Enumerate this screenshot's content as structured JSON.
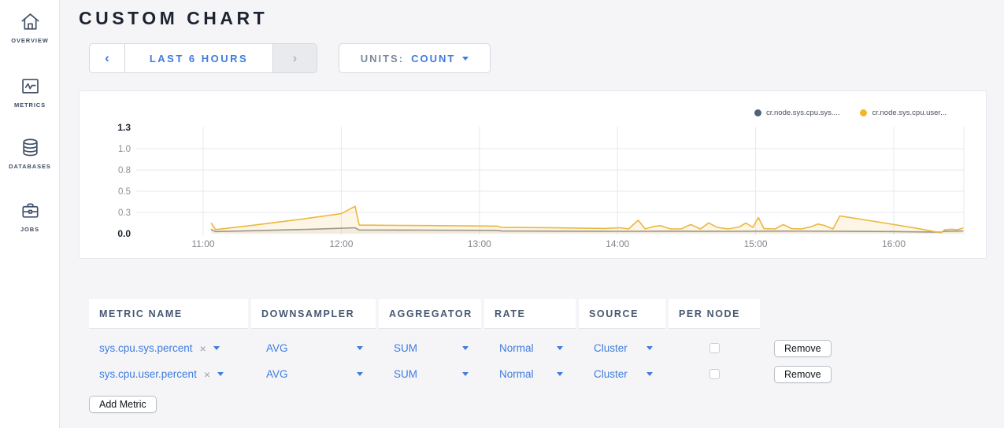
{
  "sidebar": {
    "items": [
      {
        "label": "OVERVIEW",
        "icon": "home-icon"
      },
      {
        "label": "METRICS",
        "icon": "metrics-icon"
      },
      {
        "label": "DATABASES",
        "icon": "database-icon"
      },
      {
        "label": "JOBS",
        "icon": "jobs-icon"
      }
    ]
  },
  "header": {
    "title": "CUSTOM CHART"
  },
  "toolbar": {
    "prev": "‹",
    "timewindow": "LAST 6 HOURS",
    "next": "›",
    "units_label": "UNITS:",
    "units_value": "COUNT"
  },
  "chart": {
    "legend": [
      {
        "label": "cr.node.sys.cpu.sys....",
        "color": "#50617c"
      },
      {
        "label": "cr.node.sys.cpu.user...",
        "color": "#f2b726"
      }
    ]
  },
  "chart_data": {
    "type": "line",
    "title": "",
    "xlabel": "",
    "ylabel": "",
    "ylim": [
      0,
      1.3
    ],
    "xlim_hours": [
      10.56,
      16.51
    ],
    "grid": true,
    "legend_position": "top-right",
    "x_ticks": {
      "hours": [
        11,
        12,
        13,
        14,
        15,
        16
      ],
      "labels": [
        "11:00",
        "12:00",
        "13:00",
        "14:00",
        "15:00",
        "16:00"
      ]
    },
    "y_ticks": {
      "values": [
        0,
        0.26,
        0.52,
        0.78,
        1.04,
        1.3
      ],
      "labels": [
        "0.0",
        "0.3",
        "0.5",
        "0.8",
        "1.0",
        "1.3"
      ]
    },
    "series": [
      {
        "name": "cr.node.sys.cpu.sys....",
        "line_color": "#8f9298",
        "fill_color": "rgba(143,146,152,0.10)",
        "dot_color": "#50617c",
        "points": [
          [
            11.06,
            0.048
          ],
          [
            11.09,
            0.026
          ],
          [
            11.4,
            0.038
          ],
          [
            11.8,
            0.055
          ],
          [
            12.1,
            0.072
          ],
          [
            12.13,
            0.045
          ],
          [
            12.6,
            0.043
          ],
          [
            13.13,
            0.04
          ],
          [
            13.16,
            0.033
          ],
          [
            13.6,
            0.031
          ],
          [
            14.0,
            0.029
          ],
          [
            14.4,
            0.031
          ],
          [
            14.8,
            0.029
          ],
          [
            15.2,
            0.032
          ],
          [
            15.61,
            0.03
          ],
          [
            16.0,
            0.026
          ],
          [
            16.34,
            0.018
          ],
          [
            16.37,
            0.03
          ],
          [
            16.5,
            0.033
          ]
        ]
      },
      {
        "name": "cr.node.sys.cpu.user...",
        "line_color": "#ecb73e",
        "fill_color": "rgba(236,183,62,0.13)",
        "dot_color": "#f2b726",
        "points": [
          [
            11.06,
            0.125
          ],
          [
            11.09,
            0.05
          ],
          [
            11.35,
            0.1
          ],
          [
            11.7,
            0.175
          ],
          [
            12.0,
            0.245
          ],
          [
            12.1,
            0.335
          ],
          [
            12.13,
            0.105
          ],
          [
            12.5,
            0.1
          ],
          [
            12.9,
            0.095
          ],
          [
            13.13,
            0.092
          ],
          [
            13.16,
            0.078
          ],
          [
            13.5,
            0.073
          ],
          [
            13.9,
            0.064
          ],
          [
            14.02,
            0.072
          ],
          [
            14.08,
            0.058
          ],
          [
            14.15,
            0.165
          ],
          [
            14.2,
            0.058
          ],
          [
            14.26,
            0.088
          ],
          [
            14.31,
            0.098
          ],
          [
            14.38,
            0.06
          ],
          [
            14.46,
            0.058
          ],
          [
            14.53,
            0.112
          ],
          [
            14.6,
            0.058
          ],
          [
            14.66,
            0.132
          ],
          [
            14.72,
            0.078
          ],
          [
            14.8,
            0.058
          ],
          [
            14.88,
            0.082
          ],
          [
            14.93,
            0.13
          ],
          [
            14.98,
            0.078
          ],
          [
            15.02,
            0.198
          ],
          [
            15.06,
            0.062
          ],
          [
            15.14,
            0.058
          ],
          [
            15.2,
            0.112
          ],
          [
            15.26,
            0.062
          ],
          [
            15.33,
            0.058
          ],
          [
            15.4,
            0.085
          ],
          [
            15.45,
            0.118
          ],
          [
            15.5,
            0.1
          ],
          [
            15.56,
            0.058
          ],
          [
            15.61,
            0.218
          ],
          [
            15.9,
            0.14
          ],
          [
            16.15,
            0.07
          ],
          [
            16.34,
            0.012
          ],
          [
            16.37,
            0.048
          ],
          [
            16.42,
            0.055
          ],
          [
            16.46,
            0.048
          ],
          [
            16.5,
            0.068
          ]
        ]
      }
    ]
  },
  "table": {
    "columns": [
      "METRIC NAME",
      "DOWNSAMPLER",
      "AGGREGATOR",
      "RATE",
      "SOURCE",
      "PER NODE"
    ],
    "rows": [
      {
        "metric": "sys.cpu.sys.percent",
        "clear": "×",
        "downsampler": "AVG",
        "aggregator": "SUM",
        "rate": "Normal",
        "source": "Cluster",
        "per_node": false,
        "remove_label": "Remove"
      },
      {
        "metric": "sys.cpu.user.percent",
        "clear": "×",
        "downsampler": "AVG",
        "aggregator": "SUM",
        "rate": "Normal",
        "source": "Cluster",
        "per_node": false,
        "remove_label": "Remove"
      }
    ],
    "add_metric_label": "Add Metric"
  },
  "colors": {
    "accent_blue": "#3e7ce0",
    "slate": "#475872",
    "yellow": "#ecb73e",
    "page_bg": "#f5f5f7"
  }
}
